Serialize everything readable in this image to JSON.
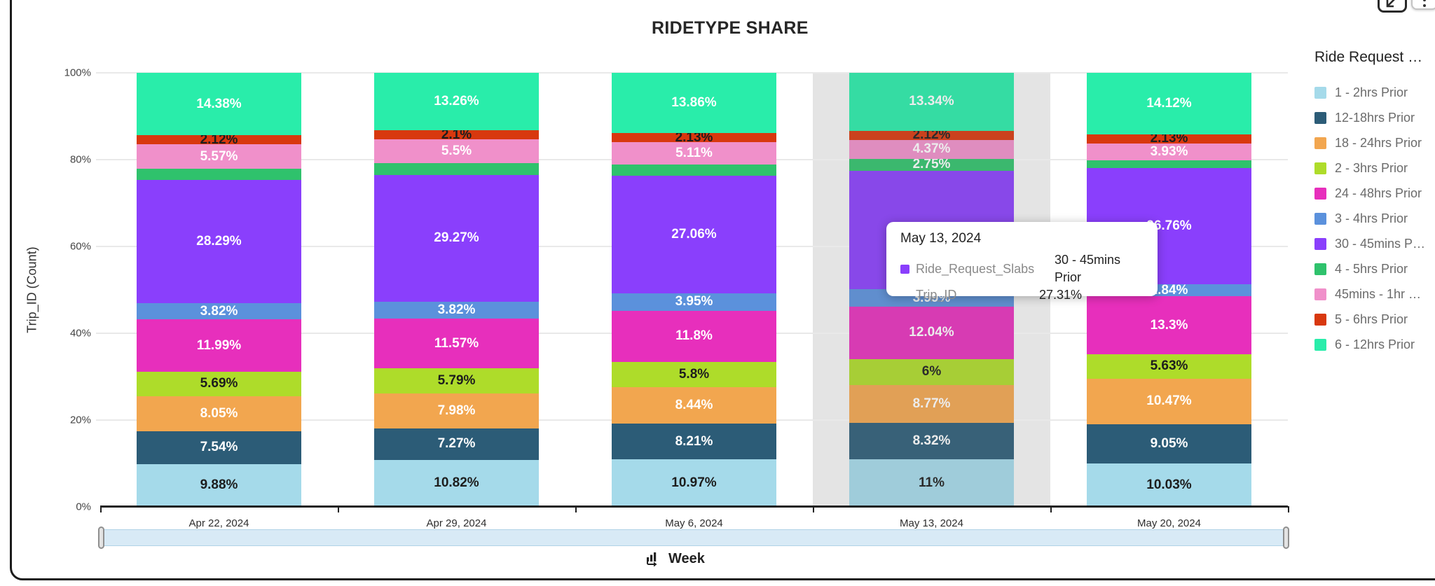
{
  "window": {
    "maximize_button": "restore-size",
    "menu_button": "more-options"
  },
  "chart": {
    "title": "RIDETYPE SHARE",
    "y_axis_title": "Trip_ID (Count)",
    "x_axis_label": "Week"
  },
  "legend": {
    "title": "Ride Request …"
  },
  "tooltip": {
    "date": "May 13, 2024",
    "rows": [
      {
        "swatch": "#8A3FFC",
        "label": "Ride_Request_Slabs",
        "value": "30 - 45mins Prior"
      },
      {
        "swatch": null,
        "label": "Trip_ID",
        "value": "27.31%"
      }
    ]
  },
  "chart_data": {
    "type": "bar",
    "stacked": "percent",
    "title": "RIDETYPE SHARE",
    "xlabel": "Week",
    "ylabel": "Trip_ID (Count)",
    "ylim": [
      0,
      100
    ],
    "y_ticks": [
      "0%",
      "20%",
      "40%",
      "60%",
      "80%",
      "100%"
    ],
    "grid": true,
    "legend_position": "right",
    "categories": [
      "Apr 22, 2024",
      "Apr 29, 2024",
      "May 6, 2024",
      "May 13, 2024",
      "May 20, 2024"
    ],
    "highlighted_category_index": 3,
    "series": [
      {
        "name": "1 - 2hrs Prior",
        "color": "#A5DAEA",
        "label_color": "#1d1d1d",
        "values": [
          9.88,
          10.82,
          10.97,
          11,
          10.03
        ],
        "labels": [
          "9.88%",
          "10.82%",
          "10.97%",
          "11%",
          "10.03%"
        ]
      },
      {
        "name": "12-18hrs Prior",
        "color": "#2C5C77",
        "label_color": "#ffffff",
        "values": [
          7.54,
          7.27,
          8.21,
          8.32,
          9.05
        ],
        "labels": [
          "7.54%",
          "7.27%",
          "8.21%",
          "8.32%",
          "9.05%"
        ]
      },
      {
        "name": "18 - 24hrs Prior",
        "color": "#F2A64F",
        "label_color": "#ffffff",
        "values": [
          8.05,
          7.98,
          8.44,
          8.77,
          10.47
        ],
        "labels": [
          "8.05%",
          "7.98%",
          "8.44%",
          "8.77%",
          "10.47%"
        ]
      },
      {
        "name": "2 - 3hrs Prior",
        "color": "#AEDC2A",
        "label_color": "#1d1d1d",
        "values": [
          5.69,
          5.79,
          5.8,
          6,
          5.63
        ],
        "labels": [
          "5.69%",
          "5.79%",
          "5.8%",
          "6%",
          "5.63%"
        ]
      },
      {
        "name": "24 - 48hrs Prior",
        "color": "#E72FBC",
        "label_color": "#ffffff",
        "values": [
          11.99,
          11.57,
          11.8,
          12.04,
          13.3
        ],
        "labels": [
          "11.99%",
          "11.57%",
          "11.8%",
          "12.04%",
          "13.3%"
        ]
      },
      {
        "name": "3 - 4hrs Prior",
        "color": "#5B91DC",
        "label_color": "#ffffff",
        "values": [
          3.82,
          3.82,
          3.95,
          3.99,
          2.84
        ],
        "labels": [
          "3.82%",
          "3.82%",
          "3.95%",
          "3.99%",
          "2.84%"
        ]
      },
      {
        "name": "30 - 45mins Prior",
        "legend_label": "30 - 45mins P…",
        "color": "#8A3FFC",
        "label_color": "#ffffff",
        "values": [
          28.29,
          29.27,
          27.06,
          27.31,
          26.76
        ],
        "labels": [
          "28.29%",
          "29.27%",
          "27.06%",
          "27.31%",
          "26.76%"
        ]
      },
      {
        "name": "4 - 5hrs Prior",
        "color": "#2FC26C",
        "label_color": "#ffffff",
        "values": [
          2.67,
          2.62,
          2.67,
          2.75,
          1.74
        ],
        "labels": [
          null,
          null,
          null,
          "2.75%",
          null
        ]
      },
      {
        "name": "45mins - 1hr Prior",
        "legend_label": "45mins - 1hr …",
        "color": "#F090CA",
        "label_color": "#ffffff",
        "values": [
          5.57,
          5.5,
          5.11,
          4.37,
          3.93
        ],
        "labels": [
          "5.57%",
          "5.5%",
          "5.11%",
          "4.37%",
          "3.93%"
        ]
      },
      {
        "name": "5 - 6hrs Prior",
        "color": "#D8380E",
        "label_color": "#1d1d1d",
        "values": [
          2.12,
          2.1,
          2.13,
          2.12,
          2.13
        ],
        "labels": [
          "2.12%",
          "2.1%",
          "2.13%",
          "2.12%",
          "2.13%"
        ]
      },
      {
        "name": "6 - 12hrs Prior",
        "color": "#29EDAA",
        "label_color": "#ffffff",
        "values": [
          14.38,
          13.26,
          13.86,
          13.34,
          14.12
        ],
        "labels": [
          "14.38%",
          "13.26%",
          "13.86%",
          "13.34%",
          "14.12%"
        ]
      }
    ]
  }
}
